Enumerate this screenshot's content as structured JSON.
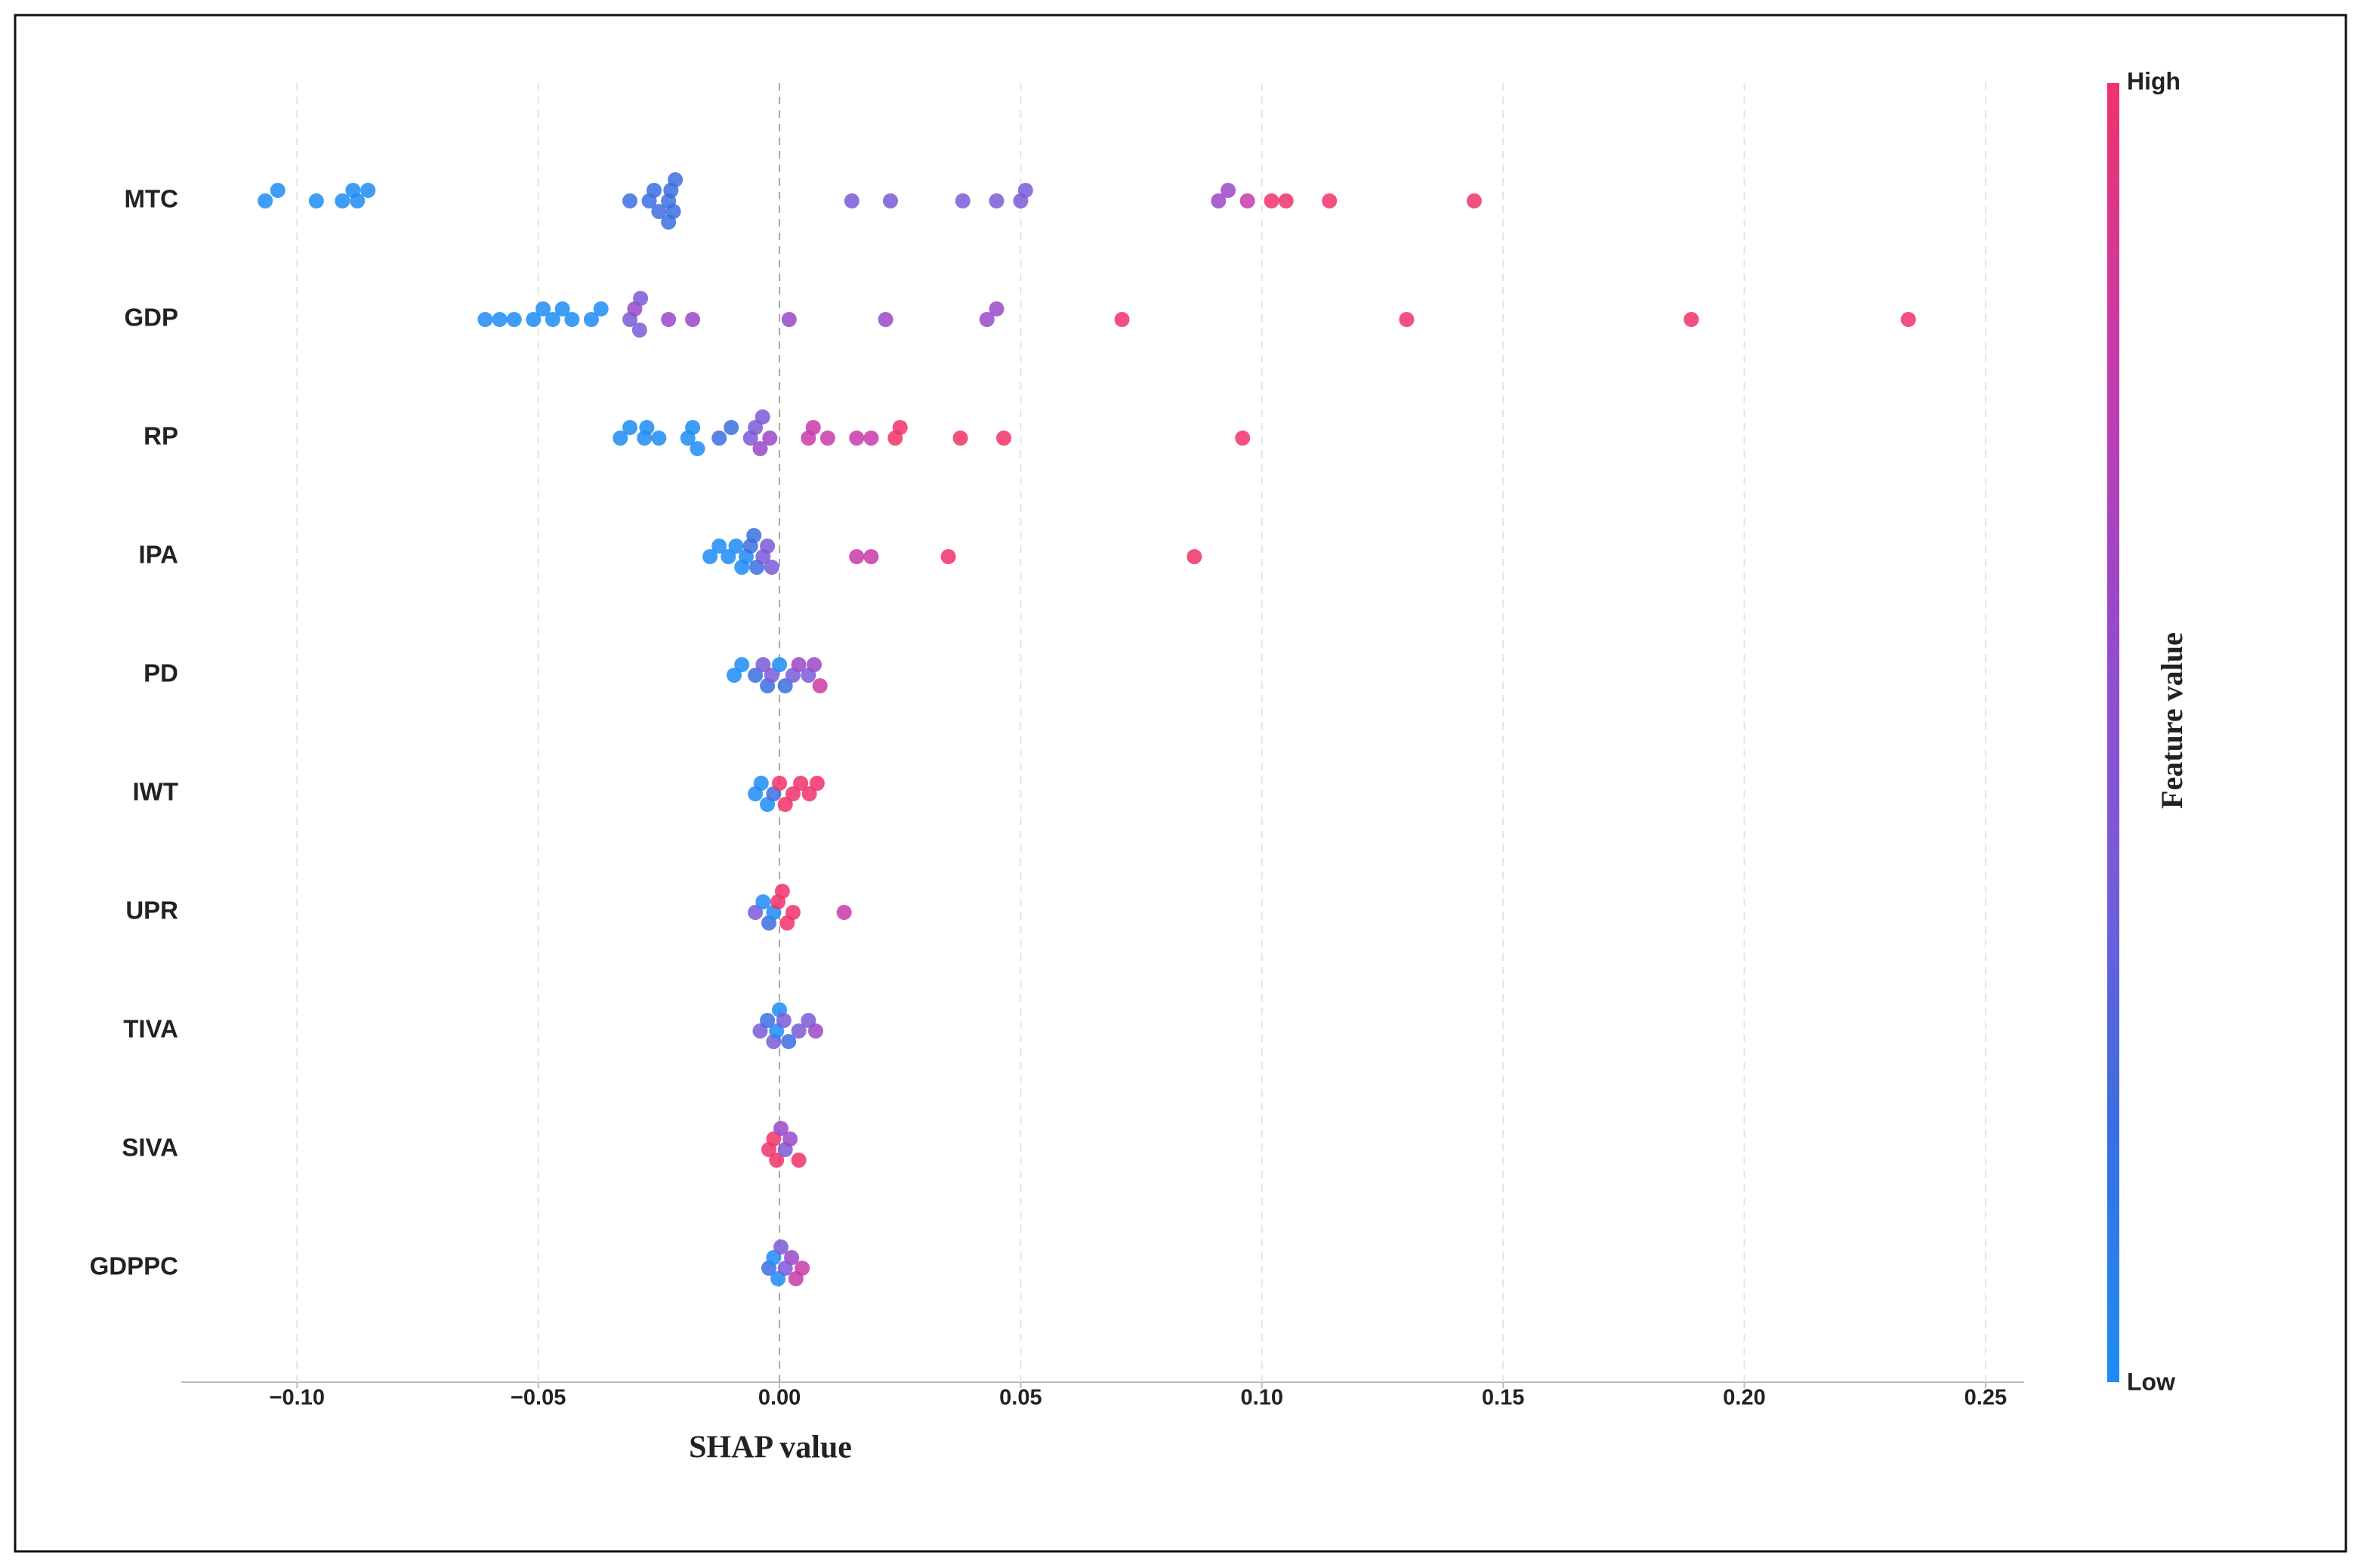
{
  "chart_data": {
    "type": "beeswarm",
    "xlabel": "SHAP value",
    "xlim": [
      -0.124,
      0.258
    ],
    "xticks": [
      {
        "value": -0.1,
        "label": "−0.10"
      },
      {
        "value": -0.05,
        "label": "−0.05"
      },
      {
        "value": 0,
        "label": "0.00"
      },
      {
        "value": 0.05,
        "label": "0.05"
      },
      {
        "value": 0.1,
        "label": "0.10"
      },
      {
        "value": 0.15,
        "label": "0.15"
      },
      {
        "value": 0.2,
        "label": "0.20"
      },
      {
        "value": 0.25,
        "label": "0.25"
      }
    ],
    "grid": true,
    "colorbar": {
      "label": "Feature value",
      "high": "High",
      "low": "Low",
      "colors": [
        "#1e8cf5",
        "#3a6ee0",
        "#7a5ad8",
        "#9a48c8",
        "#c83aa8",
        "#f0336a"
      ]
    },
    "series": [
      {
        "name": "MTC",
        "values": [
          -0.1066,
          -0.104,
          -0.096,
          -0.0906,
          -0.0884,
          -0.0875,
          -0.0853,
          -0.031,
          -0.027,
          -0.026,
          -0.025,
          -0.023,
          -0.0225,
          -0.022,
          -0.0216,
          -0.023,
          0.015,
          0.023,
          0.038,
          0.045,
          0.05,
          0.051,
          0.091,
          0.093,
          0.097,
          0.102,
          0.105,
          0.114,
          0.144
        ],
        "colors": [
          "#1e8cf5",
          "#1e8cf5",
          "#1e8cf5",
          "#1e8cf5",
          "#1e8cf5",
          "#1e8cf5",
          "#1e8cf5",
          "#3a6ee0",
          "#3a6ee0",
          "#3a6ee0",
          "#3a6ee0",
          "#3a6ee0",
          "#3a6ee0",
          "#3a6ee0",
          "#3a6ee0",
          "#3a6ee0",
          "#7a5ad8",
          "#7a5ad8",
          "#7a5ad8",
          "#7a5ad8",
          "#7a5ad8",
          "#7a5ad8",
          "#9a48c8",
          "#9a48c8",
          "#c83aa8",
          "#f0336a",
          "#f0336a",
          "#f0336a",
          "#f0336a"
        ]
      },
      {
        "name": "GDP",
        "values": [
          -0.061,
          -0.058,
          -0.055,
          -0.051,
          -0.049,
          -0.047,
          -0.045,
          -0.043,
          -0.039,
          -0.037,
          -0.031,
          -0.03,
          -0.029,
          -0.0288,
          -0.023,
          -0.018,
          0.002,
          0.022,
          0.043,
          0.045,
          0.071,
          0.13,
          0.189,
          0.234
        ],
        "colors": [
          "#1e8cf5",
          "#1e8cf5",
          "#1e8cf5",
          "#1e8cf5",
          "#1e8cf5",
          "#1e8cf5",
          "#1e8cf5",
          "#1e8cf5",
          "#1e8cf5",
          "#1e8cf5",
          "#7a5ad8",
          "#9a48c8",
          "#7a5ad8",
          "#7a5ad8",
          "#9a48c8",
          "#9a48c8",
          "#9a48c8",
          "#9a48c8",
          "#9a48c8",
          "#9a48c8",
          "#f0336a",
          "#f0336a",
          "#f0336a",
          "#f0336a"
        ]
      },
      {
        "name": "RP",
        "values": [
          -0.033,
          -0.031,
          -0.028,
          -0.0275,
          -0.025,
          -0.019,
          -0.018,
          -0.017,
          -0.0125,
          -0.01,
          -0.006,
          -0.005,
          -0.004,
          -0.0035,
          -0.002,
          0.006,
          0.007,
          0.01,
          0.016,
          0.019,
          0.024,
          0.025,
          0.0375,
          0.0465,
          0.096
        ],
        "colors": [
          "#1e8cf5",
          "#1e8cf5",
          "#1e8cf5",
          "#1e8cf5",
          "#1e8cf5",
          "#1e8cf5",
          "#1e8cf5",
          "#1e8cf5",
          "#3a6ee0",
          "#3a6ee0",
          "#7a5ad8",
          "#7a5ad8",
          "#9a48c8",
          "#7a5ad8",
          "#9a48c8",
          "#c83aa8",
          "#c83aa8",
          "#c83aa8",
          "#c83aa8",
          "#c83aa8",
          "#f0336a",
          "#f0336a",
          "#f0336a",
          "#f0336a",
          "#f0336a"
        ]
      },
      {
        "name": "IPA",
        "values": [
          -0.0144,
          -0.0125,
          -0.0106,
          -0.009,
          -0.0078,
          -0.0069,
          -0.006,
          -0.0053,
          -0.0047,
          -0.0034,
          -0.0025,
          -0.0016,
          0.016,
          0.019,
          0.035,
          0.086
        ],
        "colors": [
          "#1e8cf5",
          "#1e8cf5",
          "#1e8cf5",
          "#1e8cf5",
          "#1e8cf5",
          "#1e8cf5",
          "#3a6ee0",
          "#3a6ee0",
          "#3a6ee0",
          "#7a5ad8",
          "#7a5ad8",
          "#7a5ad8",
          "#c83aa8",
          "#c83aa8",
          "#f0336a",
          "#f0336a"
        ]
      },
      {
        "name": "PD",
        "values": [
          -0.0094,
          -0.0078,
          -0.005,
          -0.0034,
          -0.0025,
          -0.0016,
          0,
          0.0012,
          0.0028,
          0.004,
          0.006,
          0.0072,
          0.0084
        ],
        "colors": [
          "#1e8cf5",
          "#1e8cf5",
          "#3a6ee0",
          "#7a5ad8",
          "#3a6ee0",
          "#7a5ad8",
          "#1e8cf5",
          "#3a6ee0",
          "#7a5ad8",
          "#9a48c8",
          "#7a5ad8",
          "#9a48c8",
          "#c83aa8"
        ]
      },
      {
        "name": "IWT",
        "values": [
          -0.005,
          -0.0038,
          -0.0025,
          -0.0012,
          0,
          0.0012,
          0.0028,
          0.0044,
          0.0062,
          0.0078
        ],
        "colors": [
          "#1e8cf5",
          "#1e8cf5",
          "#1e8cf5",
          "#3a6ee0",
          "#f0336a",
          "#f0336a",
          "#f0336a",
          "#f0336a",
          "#f0336a",
          "#f0336a"
        ]
      },
      {
        "name": "UPR",
        "values": [
          -0.005,
          -0.0034,
          -0.0022,
          -0.0012,
          -0.0003,
          0.0006,
          0.0016,
          0.0028,
          0.0134
        ],
        "colors": [
          "#7a5ad8",
          "#1e8cf5",
          "#3a6ee0",
          "#1e8cf5",
          "#f0336a",
          "#f0336a",
          "#f0336a",
          "#f0336a",
          "#c83aa8"
        ]
      },
      {
        "name": "TIVA",
        "values": [
          -0.004,
          -0.0025,
          -0.0012,
          -0.0006,
          0,
          0.0009,
          0.0019,
          0.004,
          0.006,
          0.0075
        ],
        "colors": [
          "#7a5ad8",
          "#3a6ee0",
          "#7a5ad8",
          "#1e8cf5",
          "#1e8cf5",
          "#7a5ad8",
          "#3a6ee0",
          "#7a5ad8",
          "#7a5ad8",
          "#9a48c8"
        ]
      },
      {
        "name": "SIVA",
        "values": [
          -0.0022,
          -0.0012,
          -0.0006,
          0.0003,
          0.0012,
          0.0022,
          0.004
        ],
        "colors": [
          "#f0336a",
          "#f0336a",
          "#f0336a",
          "#9a48c8",
          "#7a5ad8",
          "#9a48c8",
          "#f0336a"
        ]
      },
      {
        "name": "GDPPC",
        "values": [
          -0.0022,
          -0.0012,
          -0.0003,
          0.0003,
          0.0012,
          0.0025,
          0.0034,
          0.0047
        ],
        "colors": [
          "#3a6ee0",
          "#1e8cf5",
          "#1e8cf5",
          "#7a5ad8",
          "#7a5ad8",
          "#9a48c8",
          "#c83aa8",
          "#c83aa8"
        ]
      }
    ]
  }
}
